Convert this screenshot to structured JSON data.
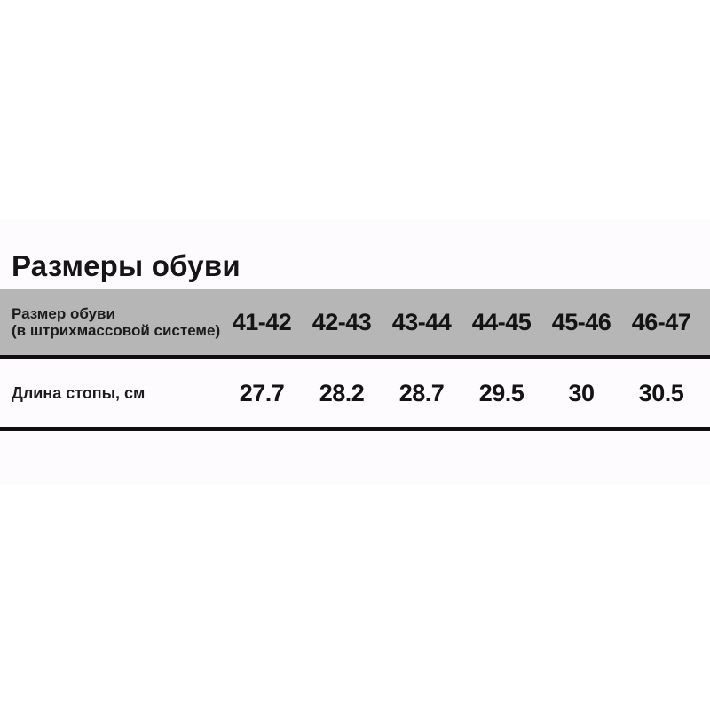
{
  "title": "Размеры обуви",
  "colors": {
    "header_background": "#b6b6b6",
    "rule": "#0e0e0e",
    "text": "#1a1a1a",
    "card_tint": "#fdfbfd"
  },
  "table": {
    "header": {
      "label_line1": "Размер обуви",
      "label_line2": "(в штрихмассовой системе)",
      "sizes": [
        "41-42",
        "42-43",
        "43-44",
        "44-45",
        "45-46",
        "46-47"
      ]
    },
    "rows": [
      {
        "label": "Длина стопы, см",
        "values": [
          "27.7",
          "28.2",
          "28.7",
          "29.5",
          "30",
          "30.5"
        ]
      }
    ]
  },
  "chart_data": {
    "type": "table",
    "title": "Размеры обуви",
    "column_header_label": "Размер обуви (в штрихмассовой системе)",
    "columns": [
      "41-42",
      "42-43",
      "43-44",
      "44-45",
      "45-46",
      "46-47"
    ],
    "rows": [
      {
        "label": "Длина стопы, см",
        "values": [
          27.7,
          28.2,
          28.7,
          29.5,
          30,
          30.5
        ]
      }
    ]
  }
}
